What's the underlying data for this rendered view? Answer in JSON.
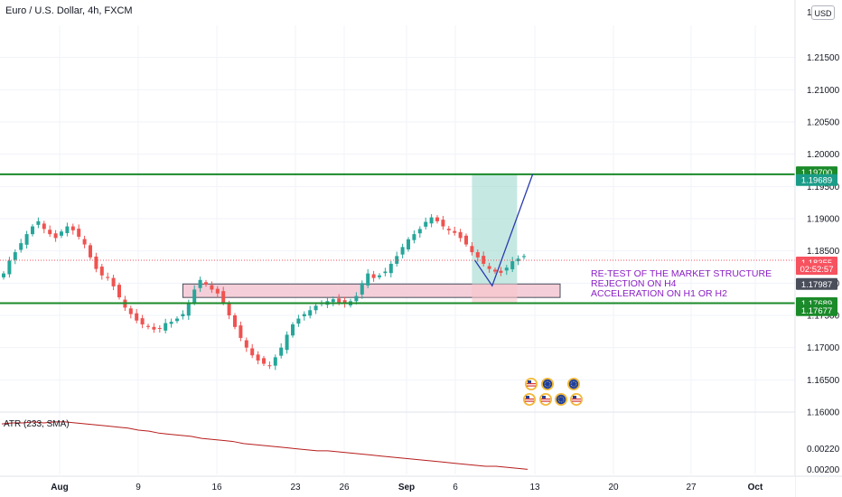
{
  "chart_data": {
    "type": "candlestick",
    "title": "Euro / U.S. Dollar, 4h, FXCM",
    "currency_label": "USD",
    "price_axis": {
      "range": [
        1.16,
        1.22
      ],
      "ticks": [
        "1.21500",
        "1.21000",
        "1.20500",
        "1.20000",
        "1.19500",
        "1.19000",
        "1.18500",
        "1.18000",
        "1.17500",
        "1.17000",
        "1.16500",
        "1.16000"
      ],
      "top_partial_tick": "1.2"
    },
    "time_axis": {
      "labels": [
        "Aug",
        "9",
        "16",
        "23",
        "26",
        "Sep",
        "6",
        "13",
        "20",
        "27",
        "Oct"
      ]
    },
    "close_path": [
      1.1815,
      1.1835,
      1.1848,
      1.1862,
      1.1876,
      1.1888,
      1.1896,
      1.1884,
      1.1876,
      1.187,
      1.188,
      1.1888,
      1.1882,
      1.1872,
      1.186,
      1.184,
      1.1822,
      1.1812,
      1.1808,
      1.1795,
      1.1778,
      1.1762,
      1.1752,
      1.1742,
      1.1736,
      1.1732,
      1.1728,
      1.173,
      1.1738,
      1.174,
      1.1745,
      1.1752,
      1.177,
      1.179,
      1.1805,
      1.1798,
      1.179,
      1.1784,
      1.177,
      1.175,
      1.1732,
      1.1715,
      1.17,
      1.1688,
      1.168,
      1.1675,
      1.1672,
      1.1685,
      1.17,
      1.172,
      1.1736,
      1.1745,
      1.1752,
      1.1758,
      1.1765,
      1.177,
      1.1772,
      1.1775,
      1.177,
      1.1768,
      1.1772,
      1.178,
      1.18,
      1.1815,
      1.1808,
      1.1812,
      1.1818,
      1.183,
      1.1842,
      1.1856,
      1.1868,
      1.1876,
      1.1884,
      1.1895,
      1.1902,
      1.1896,
      1.1888,
      1.1882,
      1.1878,
      1.187,
      1.186,
      1.1848,
      1.184,
      1.183,
      1.1822,
      1.1818,
      1.1816,
      1.1824,
      1.1834,
      1.1838,
      1.1842
    ],
    "horizontal_levels": [
      {
        "name": "resistance",
        "value": 1.19689,
        "color": "#1b8a2a"
      },
      {
        "name": "support",
        "value": 1.17689,
        "color": "#1b8a2a"
      },
      {
        "name": "last-price",
        "value": 1.18355,
        "color": "#f7525f"
      }
    ],
    "zones": [
      {
        "name": "demand-zone",
        "from": 1.17987,
        "to": 1.1789,
        "x_start_index": 31,
        "color": "#f2c6d2"
      },
      {
        "name": "target-zone",
        "from": 1.17987,
        "to": 1.19689,
        "x_start_index": 81,
        "x_end_index": 86,
        "color": "#a8dcd3"
      }
    ],
    "projection": [
      {
        "index": 81.5,
        "value": 1.18355
      },
      {
        "index": 84.5,
        "value": 1.1796
      },
      {
        "index": 91.5,
        "value": 1.19689
      }
    ],
    "annotations": [
      "RE-TEST OF THE MARKET STRUCTURE",
      "REJECTION ON H4",
      "ACCELERATION ON H1 OR H2"
    ],
    "price_tags": [
      {
        "label": "1.19700",
        "value": 1.1972,
        "color": "#1b8a2a"
      },
      {
        "label": "1.19689",
        "value": 1.196,
        "color": "#1b9c88"
      },
      {
        "label": "1.18355",
        "value": 1.1832,
        "color": "#f7525f"
      },
      {
        "label": "02:52:57",
        "value": 1.1822,
        "color": "#f7525f"
      },
      {
        "label": "1.17987",
        "value": 1.17987,
        "color": "#4a4e5a"
      },
      {
        "label": "1.17689",
        "value": 1.17689,
        "color": "#1b8a2a"
      },
      {
        "label": "1.17677",
        "value": 1.1758,
        "color": "#1b8a2a"
      }
    ],
    "atr": {
      "label": "ATR (233, SMA)",
      "ticks": [
        "0.00220",
        "0.00200"
      ],
      "range": [
        0.00196,
        0.00252
      ],
      "values": [
        0.00244,
        0.00245,
        0.00245,
        0.00246,
        0.00245,
        0.00246,
        0.00246,
        0.00245,
        0.00244,
        0.00243,
        0.00242,
        0.00241,
        0.0024,
        0.00238,
        0.00237,
        0.00235,
        0.00234,
        0.00233,
        0.00232,
        0.0023,
        0.00229,
        0.00228,
        0.00227,
        0.00225,
        0.00224,
        0.00223,
        0.00222,
        0.00221,
        0.0022,
        0.00219,
        0.00218,
        0.00218,
        0.00217,
        0.00216,
        0.00215,
        0.00214,
        0.00213,
        0.00212,
        0.00211,
        0.0021,
        0.00209,
        0.00208,
        0.00207,
        0.00206,
        0.00205,
        0.00204,
        0.00203,
        0.00203,
        0.00202,
        0.00201,
        0.002
      ]
    },
    "grid": true
  }
}
